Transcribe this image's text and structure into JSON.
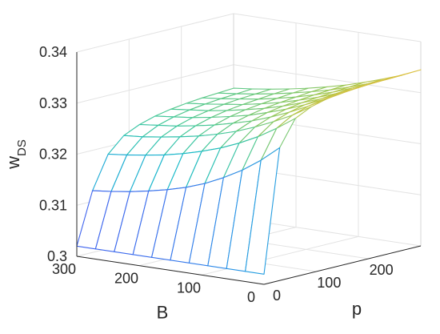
{
  "chart_data": {
    "type": "surface",
    "x_axis": {
      "label": "B",
      "ticks": [
        0,
        100,
        200,
        300
      ],
      "tick_labels": [
        "0",
        "100",
        "200",
        "300"
      ],
      "range": [
        0,
        300
      ]
    },
    "y_axis": {
      "label": "p",
      "ticks": [
        0,
        100,
        200
      ],
      "tick_labels": [
        "0",
        "100",
        "200"
      ],
      "range": [
        0,
        300
      ]
    },
    "z_axis": {
      "label_main": "w",
      "label_subscript": "DS",
      "ticks": [
        0.3,
        0.31,
        0.32,
        0.33,
        0.34
      ],
      "tick_labels": [
        "0.3",
        "0.31",
        "0.32",
        "0.33",
        "0.34"
      ],
      "range": [
        0.3,
        0.34
      ]
    },
    "grid": true,
    "colormap": "parula",
    "surface": {
      "B": [
        0,
        30,
        60,
        90,
        120,
        150,
        180,
        210,
        240,
        270,
        300
      ],
      "p": [
        0,
        30,
        60,
        90,
        120,
        150,
        180,
        210,
        240,
        270,
        300
      ],
      "w_DS": [
        [
          0.302,
          0.302,
          0.302,
          0.302,
          0.302,
          0.302,
          0.302,
          0.302,
          0.302,
          0.302,
          0.302
        ],
        [
          0.326,
          0.323,
          0.3205,
          0.3185,
          0.3168,
          0.3155,
          0.3145,
          0.3137,
          0.313,
          0.3125,
          0.3121
        ],
        [
          0.331,
          0.3285,
          0.3263,
          0.3245,
          0.323,
          0.3218,
          0.3208,
          0.32,
          0.3194,
          0.3189,
          0.3185
        ],
        [
          0.3325,
          0.3303,
          0.3285,
          0.3269,
          0.3255,
          0.3244,
          0.3235,
          0.3228,
          0.3222,
          0.3217,
          0.3214
        ],
        [
          0.3333,
          0.3313,
          0.3296,
          0.3281,
          0.3268,
          0.3258,
          0.3249,
          0.3242,
          0.3236,
          0.3232,
          0.3228
        ],
        [
          0.3337,
          0.3319,
          0.3303,
          0.3289,
          0.3277,
          0.3266,
          0.3258,
          0.3251,
          0.3245,
          0.3241,
          0.3237
        ],
        [
          0.334,
          0.3323,
          0.3307,
          0.3294,
          0.3282,
          0.3272,
          0.3264,
          0.3257,
          0.3251,
          0.3247,
          0.3243
        ],
        [
          0.3342,
          0.3325,
          0.331,
          0.3297,
          0.3286,
          0.3276,
          0.3268,
          0.3261,
          0.3256,
          0.3251,
          0.3247
        ],
        [
          0.3343,
          0.3327,
          0.3313,
          0.33,
          0.3289,
          0.3279,
          0.3271,
          0.3264,
          0.3259,
          0.3254,
          0.325
        ],
        [
          0.3344,
          0.3328,
          0.3314,
          0.3302,
          0.3291,
          0.3282,
          0.3274,
          0.3267,
          0.3261,
          0.3256,
          0.3252
        ],
        [
          0.3345,
          0.3329,
          0.3316,
          0.3304,
          0.3293,
          0.3284,
          0.3276,
          0.3269,
          0.3263,
          0.3258,
          0.3254
        ]
      ]
    }
  }
}
